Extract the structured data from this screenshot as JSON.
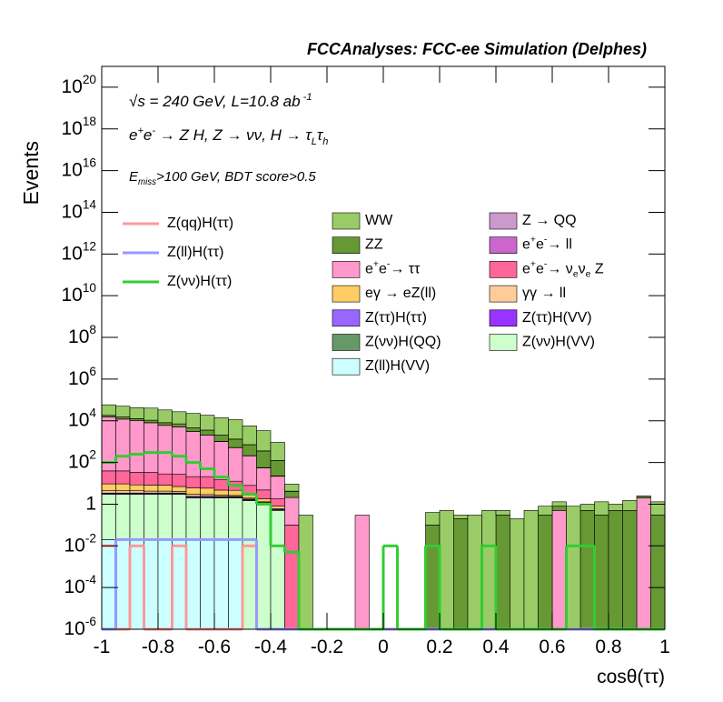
{
  "chart_data": {
    "type": "stacked_histogram",
    "title": "FCCAnalyses: FCC-ee Simulation (Delphes)",
    "annotations": [
      "√s = 240 GeV, L=10.8 ab^{ -1}",
      "e^{+}e^{-} → Z H, Z  → νν, H → τ_{L}τ_{h}",
      "E_{miss}>100 GeV, BDT score>0.5"
    ],
    "x_label": "cosθ(ττ)",
    "y_label": "Events",
    "log_y": true,
    "xlim": [
      -1,
      1
    ],
    "xticks": [
      -1,
      -0.8,
      -0.6,
      -0.4,
      -0.2,
      0,
      0.2,
      0.4,
      0.6,
      0.8,
      1
    ],
    "ylim": [
      1e-06,
      1e+21
    ],
    "yticks": [
      {
        "value": 1e-06,
        "label": "10^{-6}"
      },
      {
        "value": 0.0001,
        "label": "10^{-4}"
      },
      {
        "value": 0.01,
        "label": "10^{-2}"
      },
      1,
      {
        "value": 100,
        "label": "10^{2}"
      },
      {
        "value": 10000.0,
        "label": "10^{4}"
      },
      {
        "value": 1000000.0,
        "label": "10^{6}"
      },
      {
        "value": 100000000.0,
        "label": "10^{8}"
      },
      {
        "value": 10000000000.0,
        "label": "10^{10}"
      },
      {
        "value": 1000000000000.0,
        "label": "10^{12}"
      },
      {
        "value": 100000000000000.0,
        "label": "10^{14}"
      },
      {
        "value": 1e+16,
        "label": "10^{16}"
      },
      {
        "value": 1e+18,
        "label": "10^{18}"
      },
      {
        "value": 1e+20,
        "label": "10^{20}"
      }
    ],
    "bins": [
      -1,
      -0.95,
      -0.9,
      -0.85,
      -0.8,
      -0.75,
      -0.7,
      -0.65,
      -0.6,
      -0.55,
      -0.5,
      -0.45,
      -0.4,
      -0.35,
      -0.3,
      -0.25,
      -0.2,
      -0.15,
      -0.1,
      -0.05,
      0,
      0.05,
      0.1,
      0.15,
      0.2,
      0.25,
      0.3,
      0.35,
      0.4,
      0.45,
      0.5,
      0.55,
      0.6,
      0.65,
      0.7,
      0.75,
      0.8,
      0.85,
      0.9,
      0.95,
      1
    ],
    "series": [
      {
        "name": "WW",
        "color": "#99cc66",
        "values": [
          40000,
          35000,
          30000,
          30000,
          25000,
          20000,
          18000,
          15000,
          12000,
          10000,
          5000,
          3000,
          800,
          5,
          0.3,
          null,
          null,
          null,
          null,
          null,
          null,
          null,
          null,
          0.3,
          0.5,
          0.1,
          0.3,
          0.5,
          0.2,
          0.2,
          0.5,
          0.5,
          0.5,
          0.8,
          0.5,
          1,
          0.5,
          1,
          null,
          1
        ]
      },
      {
        "name": "Z → QQ",
        "color": "#cc99cc",
        "values": [
          50,
          50,
          40,
          40,
          30,
          30,
          20,
          20,
          15,
          10,
          5,
          3,
          1,
          0.1,
          null,
          null,
          null,
          null,
          null,
          null,
          null,
          null,
          null,
          null,
          null,
          null,
          null,
          null,
          null,
          null,
          null,
          null,
          null,
          null,
          null,
          null,
          null,
          null,
          null,
          null
        ]
      },
      {
        "name": "ZZ",
        "color": "#669933",
        "values": [
          3000,
          3000,
          2500,
          2500,
          2000,
          2000,
          1500,
          1500,
          1000,
          800,
          500,
          300,
          100,
          2,
          null,
          null,
          null,
          null,
          null,
          null,
          null,
          null,
          null,
          0.1,
          null,
          0.2,
          null,
          null,
          0.3,
          null,
          null,
          0.3,
          0.3,
          null,
          0.5,
          0.3,
          0.5,
          0.5,
          0.5,
          0.3
        ]
      },
      {
        "name": "e^{+}e^{-}→ ll",
        "color": "#cc66cc",
        "values": [
          200,
          150,
          120,
          100,
          80,
          60,
          40,
          30,
          20,
          10,
          5,
          2,
          1,
          null,
          null,
          null,
          null,
          null,
          null,
          null,
          null,
          null,
          null,
          null,
          null,
          null,
          null,
          null,
          null,
          null,
          null,
          null,
          null,
          null,
          null,
          null,
          null,
          null,
          null,
          null
        ]
      },
      {
        "name": "e^{+}e^{-}→ ττ",
        "color": "#ff99cc",
        "values": [
          15000,
          12000,
          10000,
          8000,
          6000,
          5000,
          3000,
          2000,
          1000,
          500,
          200,
          50,
          20,
          2,
          null,
          null,
          null,
          null,
          0.3,
          null,
          null,
          null,
          null,
          null,
          null,
          null,
          null,
          null,
          null,
          null,
          null,
          null,
          0.5,
          null,
          null,
          null,
          null,
          null,
          2,
          null
        ]
      },
      {
        "name": "e^{+}e^{-}→ ν_{e}ν_{e} Z",
        "color": "#ff6699",
        "values": [
          30,
          30,
          25,
          25,
          20,
          20,
          15,
          15,
          10,
          8,
          5,
          3,
          1,
          0.1,
          null,
          null,
          null,
          null,
          null,
          null,
          null,
          null,
          null,
          null,
          null,
          null,
          null,
          null,
          null,
          null,
          null,
          null,
          null,
          null,
          null,
          null,
          null,
          null,
          null,
          null
        ]
      },
      {
        "name": "eγ → eZ(ll)",
        "color": "#ffcc66",
        "values": [
          5,
          5,
          4,
          4,
          4,
          3,
          3,
          3,
          2,
          2,
          1,
          0.5,
          0.2,
          null,
          null,
          null,
          null,
          null,
          null,
          null,
          null,
          null,
          null,
          null,
          null,
          null,
          null,
          null,
          null,
          null,
          null,
          null,
          null,
          null,
          null,
          null,
          null,
          null,
          null,
          null
        ]
      },
      {
        "name": "γγ → ll",
        "color": "#ffcc99",
        "values": [
          1,
          1,
          1,
          0.8,
          0.8,
          0.6,
          0.6,
          0.5,
          0.4,
          0.3,
          0.2,
          0.1,
          null,
          null,
          null,
          null,
          null,
          null,
          null,
          null,
          null,
          null,
          null,
          null,
          null,
          null,
          null,
          null,
          null,
          null,
          null,
          null,
          null,
          null,
          null,
          null,
          null,
          null,
          null,
          null
        ]
      },
      {
        "name": "Z(ττ)H(ττ)",
        "color": "#9966ff",
        "values": [
          0.1,
          0.1,
          0.1,
          0.1,
          0.1,
          0.1,
          0.1,
          0.1,
          0.1,
          0.1,
          0.1,
          0.1,
          0.05,
          null,
          null,
          null,
          null,
          null,
          null,
          null,
          null,
          null,
          null,
          null,
          null,
          null,
          null,
          null,
          null,
          null,
          null,
          null,
          null,
          null,
          null,
          null,
          null,
          null,
          null,
          null
        ]
      },
      {
        "name": "Z(ττ)H(VV)",
        "color": "#9933ff",
        "values": [
          0.3,
          0.3,
          0.3,
          0.3,
          0.3,
          0.3,
          0.25,
          0.25,
          0.2,
          0.2,
          0.15,
          0.1,
          0.05,
          null,
          null,
          null,
          null,
          null,
          null,
          null,
          null,
          null,
          null,
          null,
          null,
          null,
          null,
          null,
          null,
          null,
          null,
          null,
          null,
          null,
          null,
          null,
          null,
          null,
          null,
          null
        ]
      },
      {
        "name": "Z(νν)H(QQ)",
        "color": "#669966",
        "values": [
          0.01,
          0.01,
          0.01,
          0.01,
          0.01,
          0.01,
          0.01,
          0.01,
          0.01,
          0.01,
          0.01,
          null,
          null,
          null,
          null,
          null,
          null,
          null,
          null,
          null,
          null,
          null,
          null,
          null,
          null,
          null,
          null,
          null,
          null,
          null,
          null,
          null,
          null,
          null,
          null,
          null,
          null,
          null,
          null,
          null
        ]
      },
      {
        "name": "Z(νν)H(VV)",
        "color": "#ccffcc",
        "values": [
          3,
          3,
          3,
          3,
          3,
          3,
          2,
          2,
          2,
          2,
          1.5,
          1,
          0.5,
          null,
          null,
          null,
          null,
          null,
          null,
          null,
          null,
          null,
          null,
          null,
          null,
          null,
          null,
          null,
          null,
          null,
          null,
          null,
          null,
          null,
          null,
          null,
          null,
          null,
          null,
          null
        ]
      },
      {
        "name": "Z(ll)H(VV)",
        "color": "#ccffff",
        "values": [
          0.02,
          0.02,
          0.02,
          0.02,
          0.02,
          0.02,
          0.02,
          0.02,
          0.02,
          0.02,
          null,
          null,
          null,
          null,
          null,
          null,
          null,
          null,
          null,
          null,
          null,
          null,
          null,
          null,
          null,
          null,
          null,
          null,
          null,
          null,
          null,
          null,
          null,
          null,
          null,
          null,
          null,
          null,
          null,
          null
        ]
      }
    ],
    "line_series": [
      {
        "name": "Z(qq)H(ττ)",
        "color": "#ff9999",
        "values": [
          0.01,
          0,
          0.01,
          0,
          0,
          0.01,
          0,
          0,
          0,
          0,
          0.01,
          0,
          0,
          0,
          0,
          0,
          0,
          0,
          0,
          0,
          0,
          0,
          0,
          0,
          0,
          0,
          0,
          0,
          0,
          0,
          0,
          0,
          0,
          0,
          0,
          0,
          0,
          0,
          0,
          0
        ]
      },
      {
        "name": "Z(ll)H(ττ)",
        "color": "#9999ff",
        "values": [
          0,
          0.02,
          0.02,
          0.02,
          0.02,
          0.02,
          0.02,
          0.02,
          0.02,
          0.02,
          0.02,
          0,
          0,
          0,
          0,
          0,
          0,
          0,
          0,
          0,
          0,
          0,
          0,
          0,
          0,
          0,
          0,
          0,
          0,
          0,
          0,
          0,
          0,
          0,
          0,
          0,
          0,
          0,
          0,
          0
        ]
      },
      {
        "name": "Z(νν)H(ττ)",
        "color": "#33cc33",
        "values": [
          100,
          200,
          250,
          300,
          300,
          200,
          100,
          50,
          20,
          8,
          3,
          1,
          0.01,
          0.005,
          0,
          0,
          0,
          0,
          0,
          0,
          0.01,
          0,
          0,
          0.01,
          0,
          0,
          0,
          0.01,
          0,
          0,
          0,
          0,
          0,
          0.01,
          0.01,
          0,
          0,
          0,
          0,
          0
        ]
      }
    ]
  }
}
